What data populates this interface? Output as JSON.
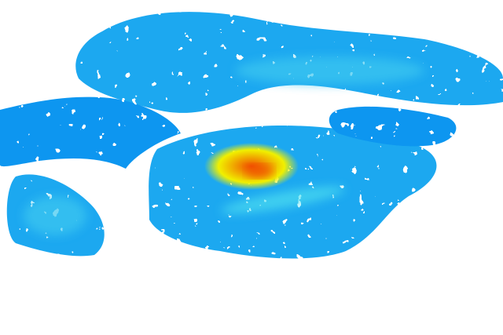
{
  "image": {
    "kind": "radar reflectivity echo field",
    "background": "#ffffff",
    "colors": {
      "light": "#1ea8f0",
      "base": "#0a96f0",
      "pale": "#3cc8f0",
      "cyan": "#50e0f0",
      "yellow": "#f0f000",
      "orange": "#f0a000",
      "red": "#f05000"
    }
  }
}
